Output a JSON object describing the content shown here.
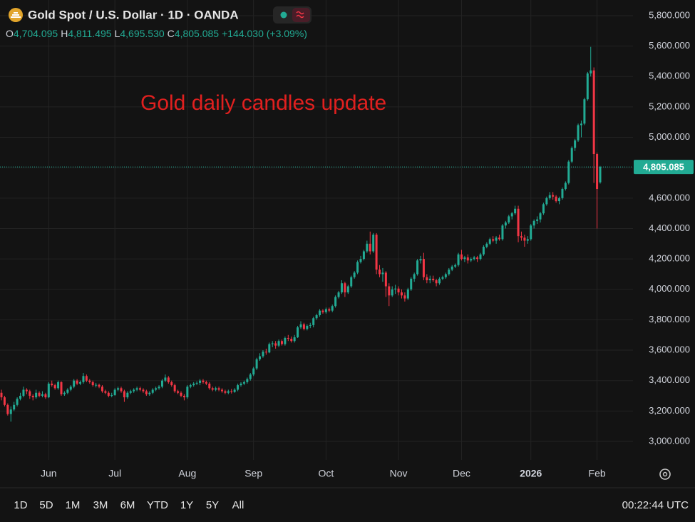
{
  "chart_data": {
    "type": "candlestick",
    "title": "Gold Spot / U.S. Dollar · 1D · OANDA",
    "annotation": "Gold daily candles update",
    "legend": {
      "o_label": "O",
      "o": "4,704.095",
      "h_label": "H",
      "h": "4,811.495",
      "l_label": "L",
      "l": "4,695.530",
      "c_label": "C",
      "c": "4,805.085",
      "change": "+144.030 (+3.09%)"
    },
    "last_price_label": "4,805.085",
    "up_color": "#22ab94",
    "down_color": "#f23645",
    "grid": true,
    "ylim": [
      2878,
      5903
    ],
    "yticks": [
      {
        "value": 3000,
        "label": "3,000.000"
      },
      {
        "value": 3200,
        "label": "3,200.000"
      },
      {
        "value": 3400,
        "label": "3,400.000"
      },
      {
        "value": 3600,
        "label": "3,600.000"
      },
      {
        "value": 3800,
        "label": "3,800.000"
      },
      {
        "value": 4000,
        "label": "4,000.000"
      },
      {
        "value": 4200,
        "label": "4,200.000"
      },
      {
        "value": 4400,
        "label": "4,400.000"
      },
      {
        "value": 4600,
        "label": "4,600.000"
      },
      {
        "value": 4800,
        "label": "4,800.000"
      },
      {
        "value": 5000,
        "label": "5,000.000"
      },
      {
        "value": 5200,
        "label": "5,200.000"
      },
      {
        "value": 5400,
        "label": "5,400.000"
      },
      {
        "value": 5600,
        "label": "5,600.000"
      },
      {
        "value": 5800,
        "label": "5,800.000"
      }
    ],
    "categories": [
      null,
      null,
      null,
      null,
      null,
      null,
      null,
      null,
      null,
      null,
      null,
      null,
      null,
      null,
      null,
      "Jun",
      null,
      null,
      null,
      null,
      null,
      null,
      null,
      null,
      null,
      null,
      null,
      null,
      null,
      null,
      null,
      null,
      null,
      null,
      null,
      null,
      "Jul",
      null,
      null,
      null,
      null,
      null,
      null,
      null,
      null,
      null,
      null,
      null,
      null,
      null,
      null,
      null,
      null,
      null,
      null,
      null,
      null,
      null,
      null,
      "Aug",
      null,
      null,
      null,
      null,
      null,
      null,
      null,
      null,
      null,
      null,
      null,
      null,
      null,
      null,
      null,
      null,
      null,
      null,
      null,
      null,
      "Sep",
      null,
      null,
      null,
      null,
      null,
      null,
      null,
      null,
      null,
      null,
      null,
      null,
      null,
      null,
      null,
      null,
      null,
      null,
      null,
      null,
      null,
      null,
      "Oct",
      null,
      null,
      null,
      null,
      null,
      null,
      null,
      null,
      null,
      null,
      null,
      null,
      null,
      null,
      null,
      null,
      null,
      null,
      null,
      null,
      null,
      null,
      "Nov",
      null,
      null,
      null,
      null,
      null,
      null,
      null,
      null,
      null,
      null,
      null,
      null,
      null,
      null,
      null,
      null,
      null,
      null,
      null,
      "Dec",
      null,
      null,
      null,
      null,
      null,
      null,
      null,
      null,
      null,
      null,
      null,
      null,
      null,
      null,
      null,
      null,
      null,
      null,
      null,
      null,
      null,
      "2026",
      null,
      null,
      null,
      null,
      null,
      null,
      null,
      null,
      null,
      null,
      null,
      null,
      null,
      null,
      null,
      null,
      null,
      null,
      null,
      null,
      "Feb",
      null
    ],
    "ohlc": [
      [
        3320,
        3340,
        3270,
        3290
      ],
      [
        3290,
        3300,
        3230,
        3240
      ],
      [
        3240,
        3250,
        3170,
        3180
      ],
      [
        3180,
        3230,
        3130,
        3210
      ],
      [
        3210,
        3260,
        3200,
        3240
      ],
      [
        3240,
        3290,
        3230,
        3280
      ],
      [
        3280,
        3320,
        3270,
        3300
      ],
      [
        3300,
        3360,
        3290,
        3340
      ],
      [
        3340,
        3350,
        3310,
        3330
      ],
      [
        3330,
        3340,
        3280,
        3300
      ],
      [
        3300,
        3310,
        3270,
        3290
      ],
      [
        3290,
        3340,
        3280,
        3320
      ],
      [
        3320,
        3330,
        3290,
        3300
      ],
      [
        3300,
        3330,
        3290,
        3310
      ],
      [
        3310,
        3320,
        3280,
        3290
      ],
      [
        3290,
        3390,
        3285,
        3380
      ],
      [
        3380,
        3400,
        3360,
        3370
      ],
      [
        3370,
        3380,
        3340,
        3350
      ],
      [
        3350,
        3400,
        3340,
        3390
      ],
      [
        3390,
        3395,
        3300,
        3310
      ],
      [
        3310,
        3330,
        3300,
        3320
      ],
      [
        3320,
        3350,
        3310,
        3340
      ],
      [
        3340,
        3370,
        3330,
        3360
      ],
      [
        3360,
        3410,
        3350,
        3400
      ],
      [
        3400,
        3410,
        3370,
        3380
      ],
      [
        3380,
        3400,
        3370,
        3390
      ],
      [
        3390,
        3450,
        3380,
        3430
      ],
      [
        3430,
        3440,
        3390,
        3400
      ],
      [
        3400,
        3410,
        3380,
        3390
      ],
      [
        3390,
        3400,
        3360,
        3370
      ],
      [
        3370,
        3385,
        3355,
        3372
      ],
      [
        3372,
        3380,
        3350,
        3360
      ],
      [
        3360,
        3370,
        3320,
        3330
      ],
      [
        3330,
        3340,
        3310,
        3320
      ],
      [
        3320,
        3330,
        3290,
        3300
      ],
      [
        3300,
        3320,
        3290,
        3305
      ],
      [
        3305,
        3350,
        3300,
        3340
      ],
      [
        3340,
        3360,
        3330,
        3350
      ],
      [
        3350,
        3360,
        3320,
        3330
      ],
      [
        3330,
        3340,
        3260,
        3290
      ],
      [
        3290,
        3330,
        3280,
        3320
      ],
      [
        3320,
        3340,
        3310,
        3330
      ],
      [
        3330,
        3350,
        3320,
        3340
      ],
      [
        3340,
        3360,
        3330,
        3350
      ],
      [
        3350,
        3360,
        3330,
        3340
      ],
      [
        3340,
        3350,
        3320,
        3330
      ],
      [
        3330,
        3340,
        3300,
        3310
      ],
      [
        3310,
        3330,
        3300,
        3320
      ],
      [
        3320,
        3350,
        3310,
        3340
      ],
      [
        3340,
        3360,
        3330,
        3350
      ],
      [
        3350,
        3370,
        3340,
        3360
      ],
      [
        3360,
        3410,
        3350,
        3400
      ],
      [
        3400,
        3440,
        3390,
        3420
      ],
      [
        3420,
        3430,
        3380,
        3390
      ],
      [
        3390,
        3400,
        3360,
        3370
      ],
      [
        3370,
        3380,
        3320,
        3330
      ],
      [
        3330,
        3340,
        3310,
        3320
      ],
      [
        3320,
        3330,
        3290,
        3300
      ],
      [
        3300,
        3310,
        3270,
        3290
      ],
      [
        3290,
        3370,
        3280,
        3360
      ],
      [
        3360,
        3380,
        3350,
        3370
      ],
      [
        3370,
        3390,
        3360,
        3380
      ],
      [
        3380,
        3395,
        3370,
        3385
      ],
      [
        3385,
        3410,
        3370,
        3400
      ],
      [
        3400,
        3410,
        3380,
        3390
      ],
      [
        3390,
        3400,
        3370,
        3380
      ],
      [
        3380,
        3390,
        3340,
        3350
      ],
      [
        3350,
        3360,
        3330,
        3340
      ],
      [
        3340,
        3360,
        3330,
        3350
      ],
      [
        3350,
        3360,
        3330,
        3340
      ],
      [
        3340,
        3350,
        3320,
        3330
      ],
      [
        3330,
        3340,
        3310,
        3320
      ],
      [
        3320,
        3340,
        3310,
        3330
      ],
      [
        3330,
        3345,
        3315,
        3325
      ],
      [
        3325,
        3350,
        3320,
        3340
      ],
      [
        3340,
        3380,
        3330,
        3370
      ],
      [
        3370,
        3390,
        3360,
        3380
      ],
      [
        3380,
        3400,
        3370,
        3390
      ],
      [
        3390,
        3420,
        3380,
        3410
      ],
      [
        3410,
        3450,
        3400,
        3440
      ],
      [
        3440,
        3490,
        3430,
        3480
      ],
      [
        3480,
        3550,
        3470,
        3540
      ],
      [
        3540,
        3580,
        3530,
        3560
      ],
      [
        3560,
        3600,
        3550,
        3590
      ],
      [
        3590,
        3610,
        3570,
        3585
      ],
      [
        3585,
        3650,
        3580,
        3640
      ],
      [
        3640,
        3660,
        3620,
        3645
      ],
      [
        3645,
        3660,
        3610,
        3630
      ],
      [
        3630,
        3670,
        3620,
        3660
      ],
      [
        3660,
        3670,
        3630,
        3640
      ],
      [
        3640,
        3690,
        3630,
        3680
      ],
      [
        3680,
        3700,
        3660,
        3675
      ],
      [
        3675,
        3690,
        3650,
        3660
      ],
      [
        3660,
        3700,
        3650,
        3685
      ],
      [
        3685,
        3760,
        3680,
        3750
      ],
      [
        3750,
        3790,
        3740,
        3770
      ],
      [
        3770,
        3780,
        3730,
        3740
      ],
      [
        3740,
        3770,
        3730,
        3760
      ],
      [
        3760,
        3780,
        3745,
        3765
      ],
      [
        3765,
        3820,
        3750,
        3810
      ],
      [
        3810,
        3840,
        3800,
        3830
      ],
      [
        3830,
        3870,
        3820,
        3860
      ],
      [
        3860,
        3870,
        3840,
        3850
      ],
      [
        3850,
        3880,
        3840,
        3870
      ],
      [
        3870,
        3880,
        3850,
        3860
      ],
      [
        3860,
        3900,
        3850,
        3890
      ],
      [
        3890,
        3960,
        3880,
        3950
      ],
      [
        3950,
        3990,
        3940,
        3980
      ],
      [
        3980,
        4060,
        3970,
        4040
      ],
      [
        4040,
        4050,
        3950,
        3980
      ],
      [
        3980,
        4030,
        3970,
        4020
      ],
      [
        4020,
        4090,
        4010,
        4080
      ],
      [
        4080,
        4120,
        4070,
        4110
      ],
      [
        4110,
        4190,
        4100,
        4180
      ],
      [
        4180,
        4220,
        4170,
        4200
      ],
      [
        4200,
        4260,
        4190,
        4250
      ],
      [
        4250,
        4320,
        4240,
        4300
      ],
      [
        4300,
        4380,
        4230,
        4250
      ],
      [
        4250,
        4370,
        4240,
        4360
      ],
      [
        4360,
        4370,
        4100,
        4130
      ],
      [
        4130,
        4160,
        4080,
        4100
      ],
      [
        4100,
        4140,
        4050,
        4110
      ],
      [
        4110,
        4120,
        3950,
        4020
      ],
      [
        4020,
        4040,
        3890,
        3960
      ],
      [
        3960,
        4020,
        3950,
        4000
      ],
      [
        4000,
        4030,
        3970,
        4005
      ],
      [
        4005,
        4020,
        3960,
        3980
      ],
      [
        3980,
        4000,
        3940,
        3960
      ],
      [
        3960,
        3980,
        3920,
        3940
      ],
      [
        3940,
        4010,
        3930,
        4000
      ],
      [
        4000,
        4080,
        3990,
        4070
      ],
      [
        4070,
        4110,
        4050,
        4100
      ],
      [
        4100,
        4200,
        4090,
        4190
      ],
      [
        4190,
        4220,
        4170,
        4200
      ],
      [
        4200,
        4240,
        4060,
        4080
      ],
      [
        4080,
        4100,
        4040,
        4060
      ],
      [
        4060,
        4090,
        4040,
        4070
      ],
      [
        4070,
        4090,
        4050,
        4060
      ],
      [
        4060,
        4070,
        4020,
        4040
      ],
      [
        4040,
        4080,
        4030,
        4070
      ],
      [
        4070,
        4090,
        4060,
        4080
      ],
      [
        4080,
        4110,
        4070,
        4100
      ],
      [
        4100,
        4140,
        4090,
        4130
      ],
      [
        4130,
        4160,
        4120,
        4150
      ],
      [
        4150,
        4170,
        4140,
        4160
      ],
      [
        4160,
        4240,
        4150,
        4230
      ],
      [
        4230,
        4260,
        4190,
        4200
      ],
      [
        4200,
        4220,
        4180,
        4210
      ],
      [
        4210,
        4230,
        4170,
        4190
      ],
      [
        4190,
        4210,
        4180,
        4200
      ],
      [
        4200,
        4220,
        4190,
        4210
      ],
      [
        4210,
        4220,
        4180,
        4200
      ],
      [
        4200,
        4240,
        4190,
        4230
      ],
      [
        4230,
        4290,
        4220,
        4280
      ],
      [
        4280,
        4310,
        4270,
        4300
      ],
      [
        4300,
        4340,
        4290,
        4330
      ],
      [
        4330,
        4350,
        4310,
        4320
      ],
      [
        4320,
        4350,
        4300,
        4340
      ],
      [
        4340,
        4360,
        4320,
        4330
      ],
      [
        4330,
        4430,
        4320,
        4420
      ],
      [
        4420,
        4450,
        4400,
        4440
      ],
      [
        4440,
        4490,
        4430,
        4480
      ],
      [
        4480,
        4510,
        4460,
        4500
      ],
      [
        4500,
        4550,
        4490,
        4530
      ],
      [
        4530,
        4550,
        4310,
        4350
      ],
      [
        4350,
        4380,
        4320,
        4340
      ],
      [
        4340,
        4360,
        4280,
        4320
      ],
      [
        4320,
        4350,
        4300,
        4330
      ],
      [
        4330,
        4430,
        4320,
        4420
      ],
      [
        4420,
        4460,
        4400,
        4450
      ],
      [
        4450,
        4480,
        4430,
        4460
      ],
      [
        4460,
        4510,
        4440,
        4500
      ],
      [
        4500,
        4570,
        4490,
        4560
      ],
      [
        4560,
        4610,
        4550,
        4600
      ],
      [
        4600,
        4640,
        4590,
        4620
      ],
      [
        4620,
        4640,
        4590,
        4610
      ],
      [
        4610,
        4620,
        4570,
        4580
      ],
      [
        4580,
        4610,
        4560,
        4600
      ],
      [
        4600,
        4670,
        4590,
        4660
      ],
      [
        4660,
        4710,
        4650,
        4700
      ],
      [
        4700,
        4850,
        4690,
        4840
      ],
      [
        4840,
        4940,
        4830,
        4930
      ],
      [
        4930,
        4990,
        4910,
        4980
      ],
      [
        4980,
        5090,
        4970,
        5080
      ],
      [
        5080,
        5110,
        5000,
        5090
      ],
      [
        5090,
        5260,
        5080,
        5250
      ],
      [
        5250,
        5430,
        5240,
        5420
      ],
      [
        5420,
        5595,
        5400,
        5440
      ],
      [
        5440,
        5460,
        4700,
        4890
      ],
      [
        4890,
        4900,
        4400,
        4660
      ],
      [
        4704.095,
        4811.495,
        4695.53,
        4805.085
      ]
    ]
  },
  "toolbar": {
    "ranges": [
      "1D",
      "5D",
      "1M",
      "3M",
      "6M",
      "YTD",
      "1Y",
      "5Y",
      "All"
    ],
    "clock": "00:22:44 UTC"
  }
}
